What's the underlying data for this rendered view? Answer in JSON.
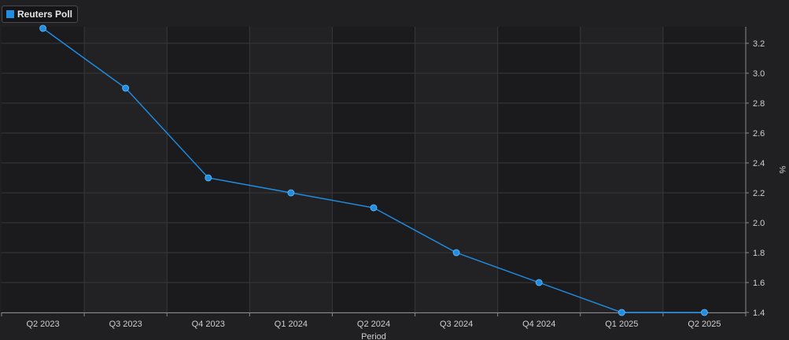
{
  "legend": {
    "label": "Reuters Poll",
    "color": "#1f8fe6"
  },
  "chart_data": {
    "type": "line",
    "categories": [
      "Q2 2023",
      "Q3 2023",
      "Q4 2023",
      "Q1 2024",
      "Q2 2024",
      "Q3 2024",
      "Q4 2024",
      "Q1 2025",
      "Q2 2025"
    ],
    "series": [
      {
        "name": "Reuters Poll",
        "values": [
          3.3,
          2.9,
          2.3,
          2.2,
          2.1,
          1.8,
          1.6,
          1.4,
          1.4
        ]
      }
    ],
    "xlabel": "Period",
    "ylabel": "%",
    "ylim": [
      1.4,
      3.3
    ],
    "yticks": [
      "1.4",
      "1.6",
      "1.8",
      "2.0",
      "2.2",
      "2.4",
      "2.6",
      "2.8",
      "3.0",
      "3.2"
    ],
    "grid": true,
    "legend_position": "top-left",
    "y_axis_side": "right"
  },
  "colors": {
    "background": "#202023",
    "band_dark": "#1b1b1e",
    "band_light": "#222225",
    "grid": "#38383c",
    "axis": "#8a8a8e",
    "series": "#1f8fe6"
  }
}
